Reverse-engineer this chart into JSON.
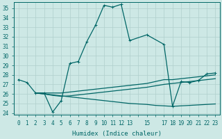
{
  "xlabel": "Humidex (Indice chaleur)",
  "bg_color": "#cde8e5",
  "grid_color": "#b0cfcc",
  "line_color": "#006666",
  "xlim": [
    -0.5,
    23.5
  ],
  "ylim": [
    23.8,
    35.6
  ],
  "yticks": [
    24,
    25,
    26,
    27,
    28,
    29,
    30,
    31,
    32,
    33,
    34,
    35
  ],
  "xtick_positions": [
    0,
    1,
    2,
    3,
    4,
    5,
    6,
    7,
    8,
    9,
    10,
    11,
    12,
    13,
    14,
    15,
    16,
    17,
    18,
    19,
    20,
    21,
    22,
    23
  ],
  "xtick_labels": [
    "0",
    "1",
    "2",
    "3",
    "4",
    "5",
    "6",
    "7",
    "8",
    "9",
    "10",
    "11",
    "12",
    "13",
    "",
    "15",
    "",
    "17",
    "18",
    "19",
    "20",
    "21",
    "22",
    "23"
  ],
  "series": [
    {
      "x": [
        0,
        1,
        2,
        3,
        4,
        5,
        6,
        7,
        8,
        9,
        10,
        11,
        12,
        13,
        15,
        17,
        18,
        19,
        20,
        21,
        22,
        23
      ],
      "y": [
        27.5,
        27.2,
        26.1,
        26.1,
        24.1,
        25.3,
        29.2,
        29.4,
        31.5,
        33.2,
        35.3,
        35.1,
        35.4,
        31.6,
        32.2,
        31.2,
        24.7,
        27.3,
        27.2,
        27.4,
        28.1,
        28.2
      ],
      "marker": true
    },
    {
      "x": [
        2,
        3,
        4,
        5,
        6,
        7,
        8,
        9,
        10,
        11,
        12,
        13,
        14,
        15,
        16,
        17,
        18,
        19,
        20,
        21,
        22,
        23
      ],
      "y": [
        26.1,
        26.1,
        26.1,
        26.1,
        26.2,
        26.3,
        26.4,
        26.5,
        26.6,
        26.7,
        26.8,
        26.9,
        27.0,
        27.1,
        27.3,
        27.5,
        27.5,
        27.6,
        27.7,
        27.8,
        27.9,
        28.0
      ],
      "marker": false
    },
    {
      "x": [
        2,
        3,
        4,
        5,
        6,
        7,
        8,
        9,
        10,
        11,
        12,
        13,
        14,
        15,
        16,
        17,
        18,
        19,
        20,
        21,
        22,
        23
      ],
      "y": [
        26.1,
        26.0,
        25.9,
        25.8,
        25.7,
        25.6,
        25.5,
        25.4,
        25.3,
        25.2,
        25.1,
        25.0,
        24.95,
        24.9,
        24.8,
        24.75,
        24.7,
        24.75,
        24.8,
        24.85,
        24.9,
        24.95
      ],
      "marker": false
    },
    {
      "x": [
        2,
        3,
        4,
        5,
        6,
        7,
        8,
        9,
        10,
        11,
        12,
        13,
        14,
        15,
        16,
        17,
        18,
        19,
        20,
        21,
        22,
        23
      ],
      "y": [
        26.1,
        26.0,
        25.85,
        25.75,
        25.8,
        25.9,
        26.0,
        26.1,
        26.2,
        26.3,
        26.4,
        26.5,
        26.6,
        26.7,
        26.85,
        27.0,
        27.1,
        27.2,
        27.3,
        27.4,
        27.5,
        27.6
      ],
      "marker": false
    }
  ],
  "linewidth": 0.9,
  "markersize": 2.0,
  "tick_fontsize": 5.5,
  "xlabel_fontsize": 6.5
}
